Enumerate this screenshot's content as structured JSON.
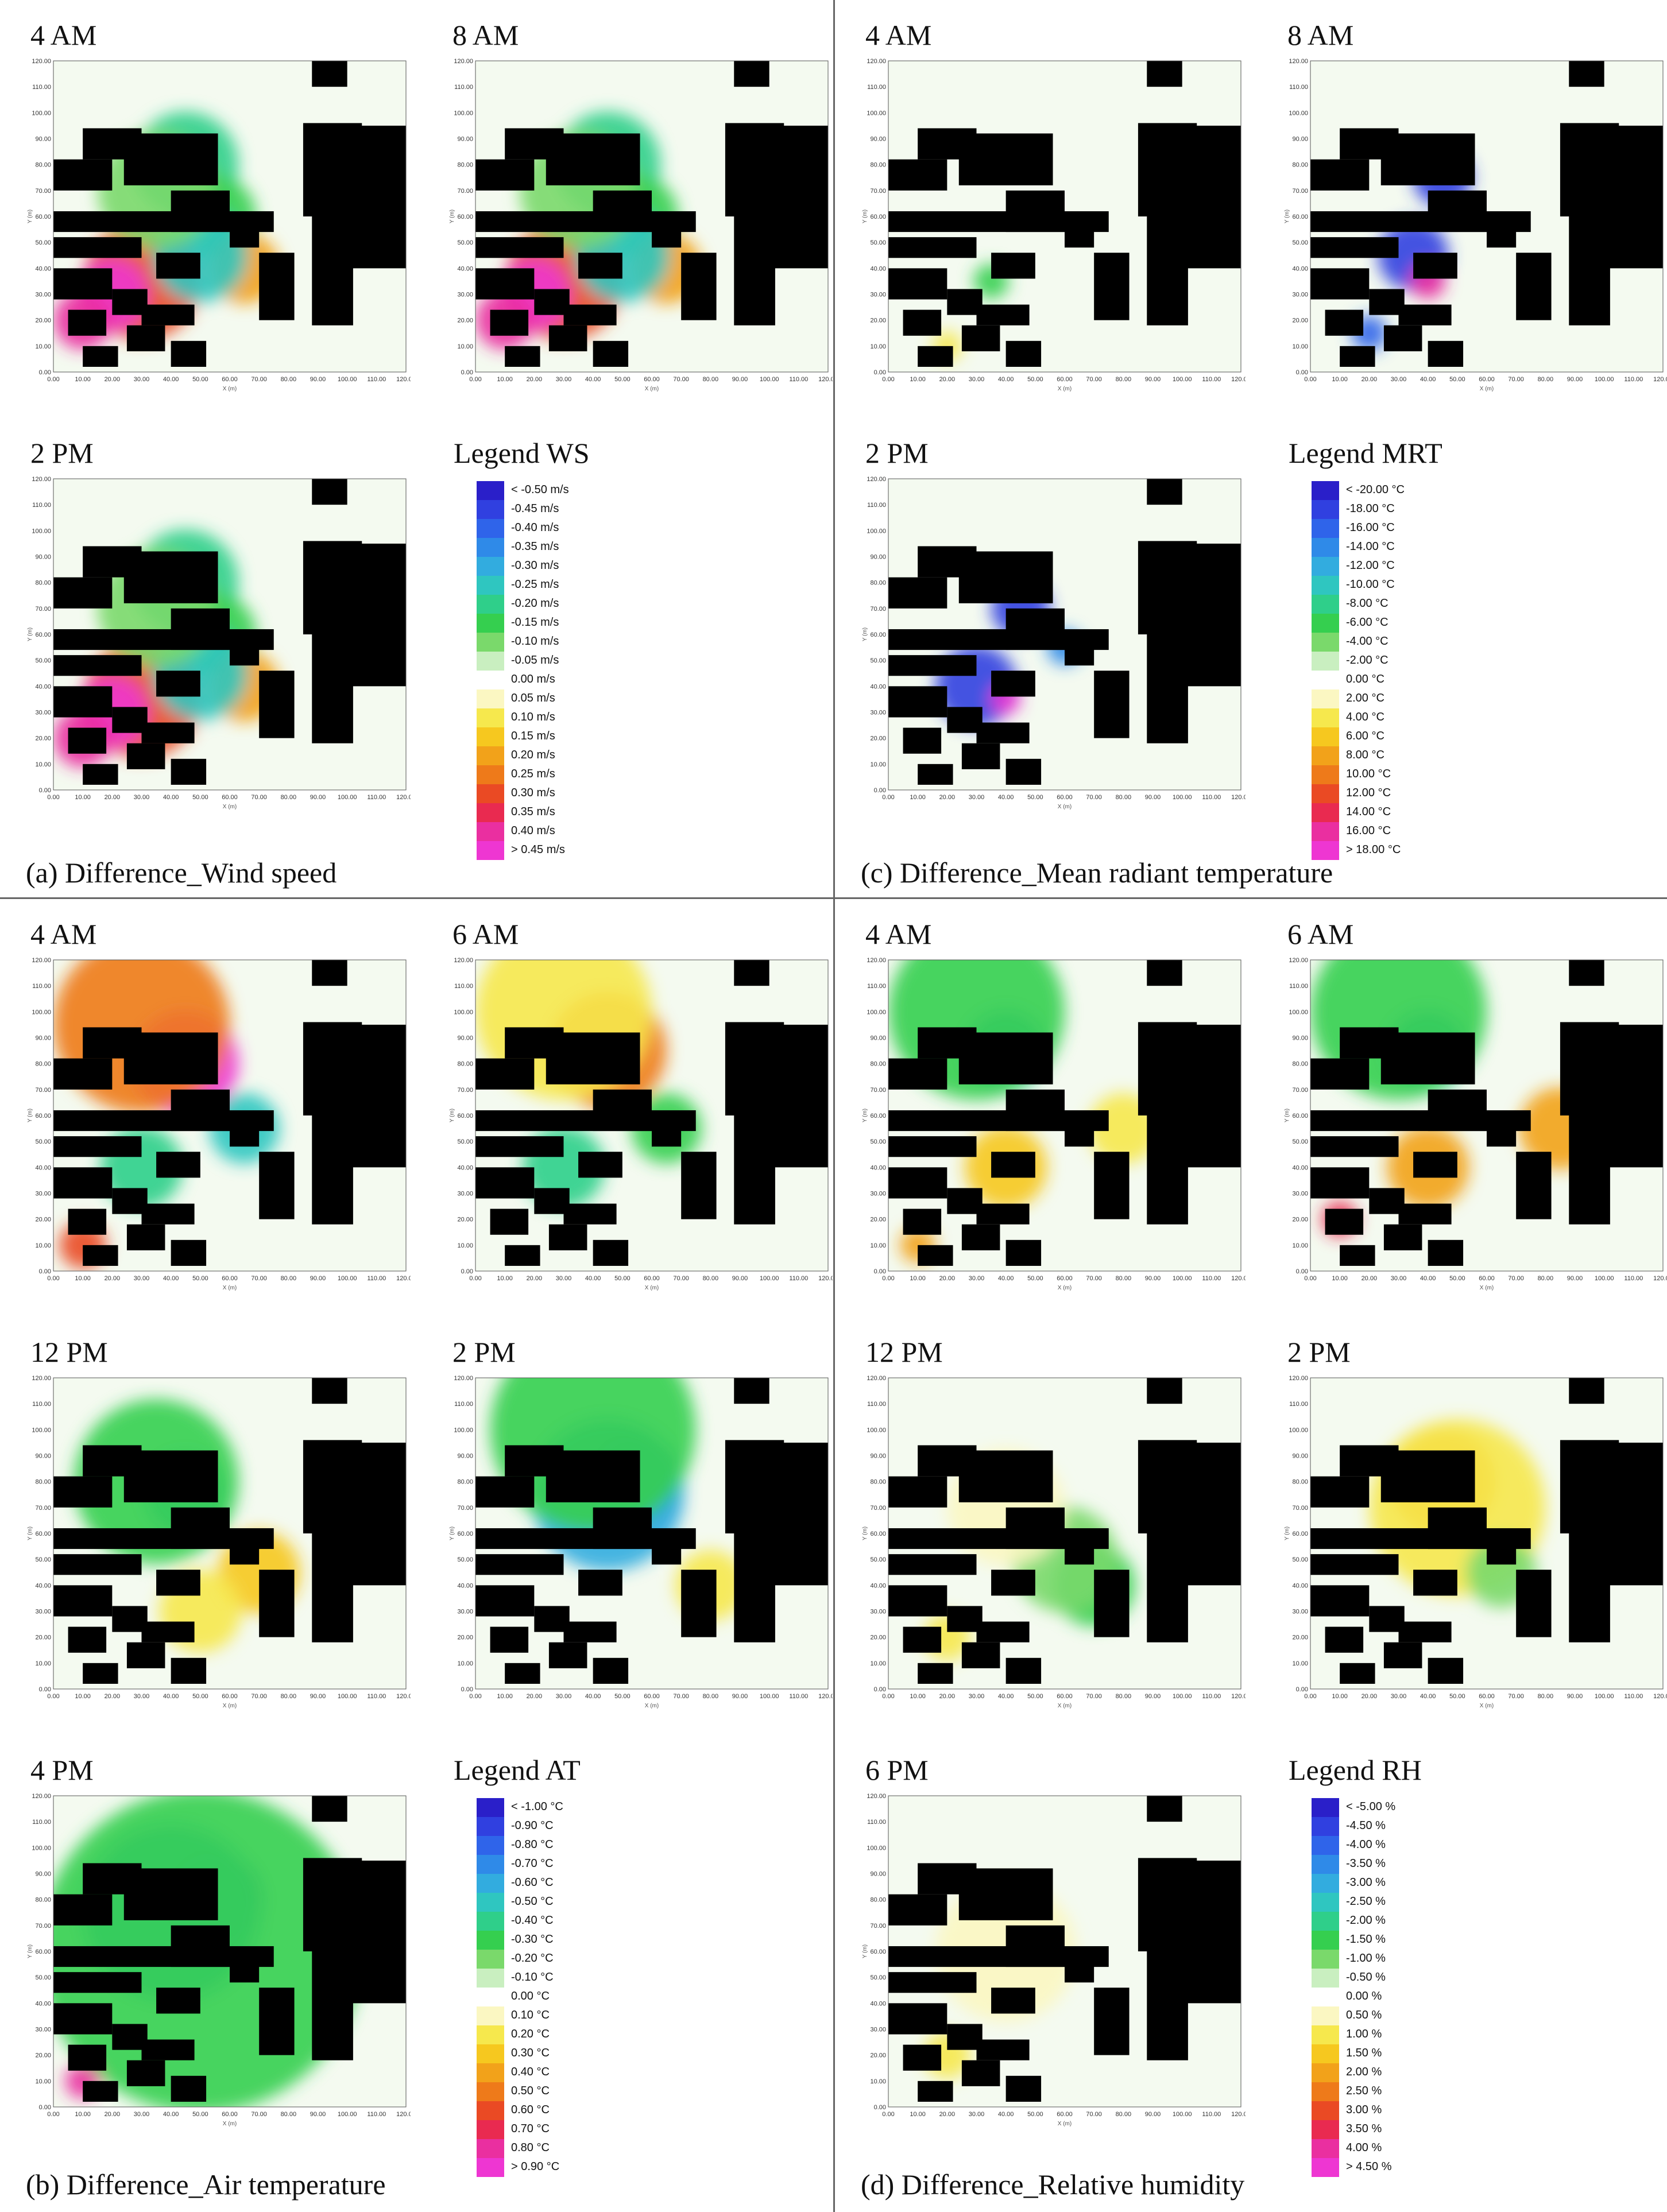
{
  "panels": [
    {
      "id": "ws",
      "caption": "(a) Difference_Wind speed",
      "legend_title": "Legend WS",
      "legend_items": [
        "< -0.50 m/s",
        "-0.45 m/s",
        "-0.40 m/s",
        "-0.35 m/s",
        "-0.30 m/s",
        "-0.25 m/s",
        "-0.20 m/s",
        "-0.15 m/s",
        "-0.10 m/s",
        "-0.05 m/s",
        "0.00 m/s",
        "0.05 m/s",
        "0.10 m/s",
        "0.15 m/s",
        "0.20 m/s",
        "0.25 m/s",
        "0.30 m/s",
        "0.35 m/s",
        "0.40 m/s",
        "> 0.45 m/s"
      ],
      "maps": [
        {
          "time": "4 AM",
          "scheme": "ws"
        },
        {
          "time": "8 AM",
          "scheme": "ws"
        },
        {
          "time": "2 PM",
          "scheme": "ws"
        }
      ]
    },
    {
      "id": "mrt",
      "caption": "(c) Difference_Mean radiant temperature",
      "legend_title": "Legend MRT",
      "legend_items": [
        "< -20.00 °C",
        "-18.00 °C",
        "-16.00 °C",
        "-14.00 °C",
        "-12.00 °C",
        "-10.00 °C",
        "-8.00 °C",
        "-6.00 °C",
        "-4.00 °C",
        "-2.00 °C",
        "0.00 °C",
        "2.00 °C",
        "4.00 °C",
        "6.00 °C",
        "8.00 °C",
        "10.00 °C",
        "12.00 °C",
        "14.00 °C",
        "16.00 °C",
        "> 18.00 °C"
      ],
      "maps": [
        {
          "time": "4 AM",
          "scheme": "mrt_am"
        },
        {
          "time": "8 AM",
          "scheme": "mrt_8am"
        },
        {
          "time": "2 PM",
          "scheme": "mrt_pm"
        }
      ]
    },
    {
      "id": "at",
      "caption": "(b) Difference_Air temperature",
      "legend_title": "Legend AT",
      "legend_items": [
        "< -1.00 °C",
        "-0.90 °C",
        "-0.80 °C",
        "-0.70 °C",
        "-0.60 °C",
        "-0.50 °C",
        "-0.40 °C",
        "-0.30 °C",
        "-0.20 °C",
        "-0.10 °C",
        "0.00 °C",
        "0.10 °C",
        "0.20 °C",
        "0.30 °C",
        "0.40 °C",
        "0.50 °C",
        "0.60 °C",
        "0.70 °C",
        "0.80 °C",
        "> 0.90 °C"
      ],
      "maps": [
        {
          "time": "4 AM",
          "scheme": "at_4am"
        },
        {
          "time": "6 AM",
          "scheme": "at_6am"
        },
        {
          "time": "12 PM",
          "scheme": "at_12pm"
        },
        {
          "time": "2 PM",
          "scheme": "at_2pm"
        },
        {
          "time": "4 PM",
          "scheme": "at_4pm"
        }
      ]
    },
    {
      "id": "rh",
      "caption": "(d) Difference_Relative humidity",
      "legend_title": "Legend RH",
      "legend_items": [
        "< -5.00 %",
        "-4.50 %",
        "-4.00 %",
        "-3.50 %",
        "-3.00 %",
        "-2.50 %",
        "-2.00 %",
        "-1.50 %",
        "-1.00 %",
        "-0.50 %",
        "0.00 %",
        "0.50 %",
        "1.00 %",
        "1.50 %",
        "2.00 %",
        "2.50 %",
        "3.00 %",
        "3.50 %",
        "4.00 %",
        "> 4.50 %"
      ],
      "maps": [
        {
          "time": "4 AM",
          "scheme": "rh_4am"
        },
        {
          "time": "6 AM",
          "scheme": "rh_6am"
        },
        {
          "time": "12 PM",
          "scheme": "rh_12pm"
        },
        {
          "time": "2 PM",
          "scheme": "rh_2pm"
        },
        {
          "time": "6 PM",
          "scheme": "rh_6pm"
        }
      ]
    }
  ],
  "map_axes": {
    "y_ticks": [
      "0.00",
      "10.00",
      "20.00",
      "30.00",
      "40.00",
      "50.00",
      "60.00",
      "70.00",
      "80.00",
      "90.00",
      "100.00",
      "110.00",
      "120.00"
    ],
    "x_ticks": [
      "0.00",
      "10.00",
      "20.00",
      "30.00",
      "40.00",
      "50.00",
      "60.00",
      "70.00",
      "80.00",
      "90.00",
      "100.00",
      "110.00",
      "120.00"
    ],
    "x_label": "X (m)",
    "y_label": "Y (m)"
  },
  "legend_colors": [
    "#2a1fc9",
    "#3040e0",
    "#2f64ea",
    "#2f8ae8",
    "#32acdf",
    "#2fc6c0",
    "#2fcf8a",
    "#35cf4f",
    "#7ad96b",
    "#c9efc0",
    "#ffffff",
    "#fbf7c2",
    "#f6e84d",
    "#f6c81f",
    "#f2a21a",
    "#ee7a1a",
    "#ea4a24",
    "#e92a50",
    "#ea2fa0",
    "#ee36d2"
  ]
}
